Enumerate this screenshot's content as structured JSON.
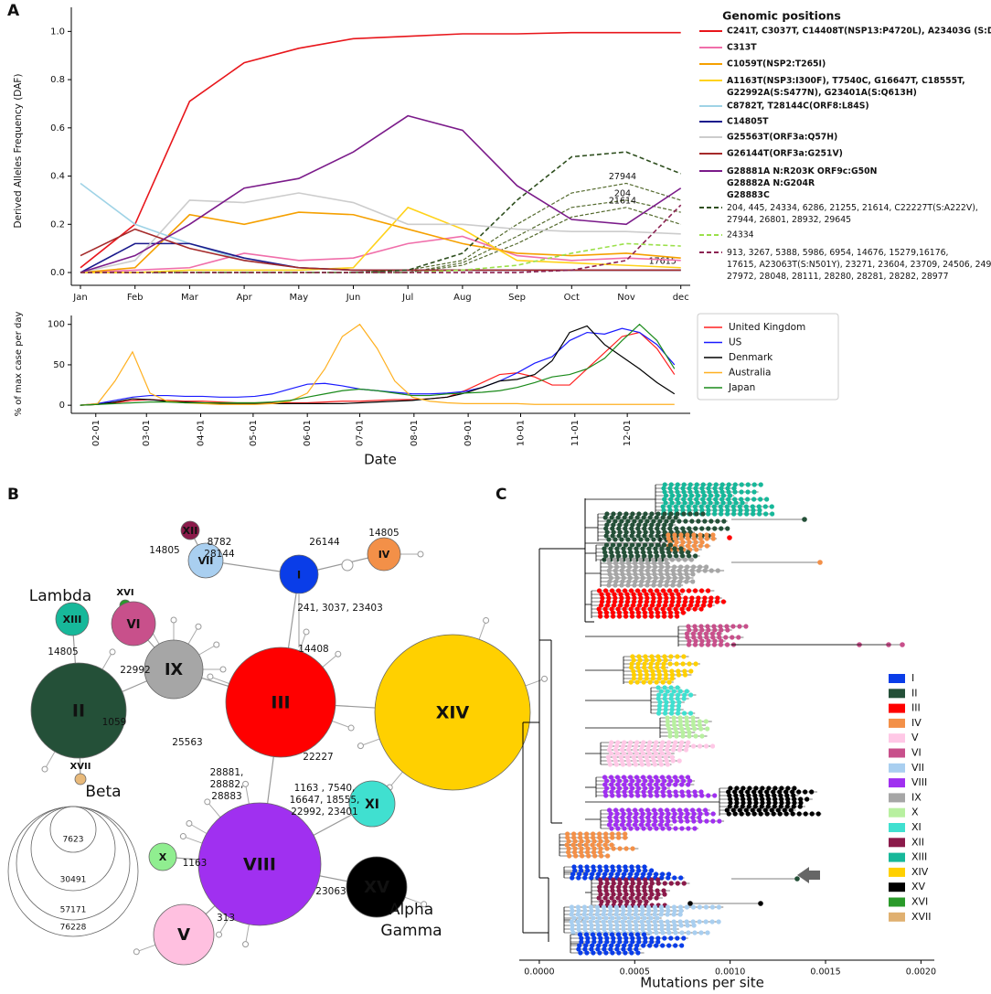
{
  "panels": [
    "A",
    "B",
    "C"
  ],
  "chart_data": [
    {
      "type": "line",
      "ylabel": "Derived Alleles Frequency (DAF)",
      "legend_title": "Genomic positions",
      "legend": "outside right",
      "categories": [
        "Jan",
        "Feb",
        "Mar",
        "Apr",
        "May",
        "Jun",
        "Jul",
        "Aug",
        "Sep",
        "Oct",
        "Nov",
        "dec"
      ],
      "ylim": [
        -0.053,
        1.1
      ],
      "yticks": [
        {
          "value": 0,
          "label": "0.0"
        },
        0.2,
        0.4,
        0.6,
        0.8,
        {
          "value": 1,
          "label": "1.0"
        }
      ],
      "series": [
        {
          "name": "C241T, C3037T, C14408T(NSP13:P4720L), A23403G (S:D614G)",
          "color": "#e8161b",
          "dashed": false,
          "values": [
            0.02,
            0.2,
            0.71,
            0.87,
            0.93,
            0.97,
            0.98,
            0.99,
            0.99,
            0.995,
            0.995,
            0.995
          ]
        },
        {
          "name": "C313T",
          "color": "#f06eaa",
          "dashed": false,
          "values": [
            0,
            0.01,
            0.02,
            0.08,
            0.05,
            0.06,
            0.12,
            0.15,
            0.07,
            0.05,
            0.06,
            0.05
          ]
        },
        {
          "name": "C1059T(NSP2:T265I)",
          "color": "#f5a000",
          "dashed": false,
          "values": [
            0,
            0.02,
            0.24,
            0.2,
            0.25,
            0.24,
            0.18,
            0.12,
            0.08,
            0.07,
            0.08,
            0.06
          ]
        },
        {
          "name": "A1163T(NSP3:I300F), T7540C, G16647T, C18555T,\nG22992A(S:S477N), G23401A(S:Q613H)",
          "color": "#ffd21a",
          "dashed": false,
          "values": [
            0,
            0,
            0.01,
            0.01,
            0.01,
            0.02,
            0.27,
            0.18,
            0.05,
            0.04,
            0.03,
            0.02
          ]
        },
        {
          "name": "C8782T, T28144C(ORF8:L84S)",
          "color": "#9fd3e6",
          "dashed": false,
          "values": [
            0.37,
            0.2,
            0.12,
            0.05,
            0.02,
            0.01,
            0.01,
            0.01,
            0.01,
            0.01,
            0.01,
            0.01
          ]
        },
        {
          "name": "C14805T",
          "color": "#1a1a8c",
          "dashed": false,
          "values": [
            0,
            0.12,
            0.12,
            0.06,
            0.02,
            0.01,
            0.01,
            0.01,
            0.01,
            0.01,
            0.01,
            0.01
          ]
        },
        {
          "name": "G25563T(ORF3a:Q57H)",
          "color": "#cccccc",
          "dashed": false,
          "values": [
            0,
            0.05,
            0.3,
            0.29,
            0.33,
            0.29,
            0.2,
            0.2,
            0.18,
            0.17,
            0.17,
            0.16
          ]
        },
        {
          "name": "G26144T(ORF3a:G251V)",
          "color": "#a52a2a",
          "dashed": false,
          "values": [
            0.07,
            0.18,
            0.1,
            0.05,
            0.02,
            0.01,
            0.01,
            0.01,
            0.01,
            0.01,
            0.01,
            0.01
          ]
        },
        {
          "name": "G28881A  N:R203K  ORF9c:G50N\nG28882A  N:G204R\nG28883C",
          "color": "#7b1b8a",
          "dashed": false,
          "values": [
            0,
            0.07,
            0.2,
            0.35,
            0.39,
            0.5,
            0.65,
            0.59,
            0.36,
            0.22,
            0.2,
            0.35
          ]
        },
        {
          "name": "204, 445, 24334, 6286, 21255, 21614, C22227T(S:A222V),\n27944, 26801, 28932, 29645",
          "color": "#2f4f1f",
          "dashed": true,
          "values": [
            0,
            0,
            0,
            0,
            0,
            0,
            0.01,
            0.08,
            0.3,
            0.48,
            0.5,
            0.41
          ]
        },
        {
          "name": "24334",
          "color": "#9be04a",
          "dashed": true,
          "values": [
            0,
            0,
            0,
            0,
            0,
            0,
            0,
            0.01,
            0.03,
            0.08,
            0.12,
            0.11
          ]
        },
        {
          "name": "913, 3267, 5388, 5986, 6954, 14676, 15279,16176,\n17615, A23063T(S:N501Y), 23271, 23604, 23709, 24506, 24914,\n27972, 28048, 28111, 28280, 28281, 28282, 28977",
          "color": "#8b2252",
          "dashed": true,
          "values": [
            0,
            0,
            0,
            0,
            0,
            0,
            0,
            0,
            0,
            0.01,
            0.05,
            0.28
          ]
        }
      ],
      "annotations": [
        {
          "text": "27944",
          "color": "#556b2f",
          "values": [
            0,
            0,
            0,
            0,
            0,
            0,
            0.01,
            0.05,
            0.2,
            0.33,
            0.37,
            0.3
          ]
        },
        {
          "text": "204",
          "color": "#556b2f",
          "values": [
            0,
            0,
            0,
            0,
            0,
            0,
            0,
            0.04,
            0.15,
            0.27,
            0.3,
            0.25
          ]
        },
        {
          "text": "21614",
          "color": "#556b2f",
          "values": [
            0,
            0,
            0,
            0,
            0,
            0,
            0,
            0.03,
            0.12,
            0.23,
            0.27,
            0.2
          ]
        },
        {
          "text": "17615",
          "color": "#8b2252",
          "x": "dec",
          "y": 0.045
        }
      ]
    },
    {
      "type": "line",
      "xlabel": "Date",
      "ylabel": "% of max case per day",
      "legend": "outside right",
      "x": [
        22,
        32,
        42,
        52,
        62,
        72,
        82,
        92,
        102,
        112,
        122,
        132,
        142,
        152,
        162,
        172,
        182,
        192,
        202,
        212,
        222,
        232,
        242,
        252,
        262,
        272,
        282,
        292,
        302,
        312,
        322,
        332,
        342,
        352,
        362
      ],
      "xlim": [
        17,
        371
      ],
      "ylim": [
        -10,
        111
      ],
      "yticks": [
        0,
        50,
        100
      ],
      "xticks": [
        {
          "value": 31,
          "label": "02-01"
        },
        {
          "value": 60,
          "label": "03-01"
        },
        {
          "value": 91,
          "label": "04-01"
        },
        {
          "value": 121,
          "label": "05-01"
        },
        {
          "value": 152,
          "label": "06-01"
        },
        {
          "value": 182,
          "label": "07-01"
        },
        {
          "value": 213,
          "label": "08-01"
        },
        {
          "value": 244,
          "label": "09-01"
        },
        {
          "value": 274,
          "label": "10-01"
        },
        {
          "value": 305,
          "label": "11-01"
        },
        {
          "value": 335,
          "label": "12-01"
        }
      ],
      "series": [
        {
          "name": "United Kingdom",
          "color": "#ff2020",
          "values": [
            0,
            1,
            3,
            6,
            7,
            6,
            5,
            5,
            4,
            3,
            3,
            3,
            3,
            3,
            4,
            5,
            5,
            6,
            7,
            7,
            8,
            10,
            18,
            28,
            38,
            40,
            35,
            25,
            25,
            45,
            65,
            85,
            90,
            70,
            38
          ]
        },
        {
          "name": "US",
          "color": "#1a1aff",
          "values": [
            0,
            2,
            6,
            10,
            12,
            12,
            11,
            11,
            10,
            10,
            11,
            14,
            20,
            26,
            27,
            24,
            20,
            18,
            16,
            14,
            14,
            15,
            17,
            22,
            30,
            40,
            52,
            60,
            80,
            90,
            88,
            95,
            90,
            75,
            50
          ]
        },
        {
          "name": "Denmark",
          "color": "#000000",
          "values": [
            0,
            1,
            4,
            8,
            7,
            5,
            4,
            3,
            2,
            2,
            2,
            2,
            2,
            2,
            2,
            2,
            3,
            4,
            5,
            6,
            8,
            10,
            15,
            22,
            30,
            32,
            38,
            55,
            90,
            98,
            75,
            60,
            45,
            28,
            14
          ]
        },
        {
          "name": "Australia",
          "color": "#ffb020",
          "values": [
            0,
            2,
            30,
            66,
            15,
            5,
            3,
            2,
            1,
            1,
            1,
            2,
            5,
            15,
            45,
            85,
            100,
            70,
            30,
            10,
            5,
            3,
            2,
            2,
            2,
            2,
            1,
            1,
            1,
            1,
            1,
            1,
            1,
            1,
            1
          ]
        },
        {
          "name": "Japan",
          "color": "#1a8a1a",
          "values": [
            0,
            1,
            2,
            3,
            4,
            4,
            3,
            3,
            3,
            3,
            3,
            4,
            6,
            10,
            14,
            18,
            20,
            18,
            15,
            12,
            12,
            14,
            15,
            16,
            18,
            22,
            28,
            35,
            38,
            45,
            58,
            80,
            100,
            80,
            45
          ]
        }
      ]
    },
    {
      "type": "tree",
      "xlabel": "Mutations per site",
      "xlim": [
        -0.000105,
        0.00207
      ],
      "xticks": [
        {
          "value": 0,
          "label": "0.0000"
        },
        {
          "value": 0.0005,
          "label": "0.0005"
        },
        {
          "value": 0.001,
          "label": "0.0010"
        },
        {
          "value": 0.0015,
          "label": "0.0015"
        },
        {
          "value": 0.002,
          "label": "0.0020"
        }
      ],
      "categories": [
        "I",
        "II",
        "III",
        "IV",
        "V",
        "VI",
        "VII",
        "VIII",
        "IX",
        "X",
        "XI",
        "XII",
        "XIII",
        "XIV",
        "XV",
        "XVI",
        "XVII"
      ],
      "colors": [
        "#0a3de8",
        "#245038",
        "#ff0000",
        "#f39048",
        "#ffc8e6",
        "#c8508b",
        "#a9cff0",
        "#a030f0",
        "#a6a6a6",
        "#b8f0a0",
        "#40e0d0",
        "#8b1a4a",
        "#17b89a",
        "#ffd000",
        "#000000",
        "#2a9a2a",
        "#e0b070"
      ]
    }
  ],
  "network": {
    "nodes": [
      {
        "label": "XII",
        "color": "#8b1a4a"
      },
      {
        "label": "VII",
        "color": "#a9cff0"
      },
      {
        "label": "I",
        "color": "#0a3de8"
      },
      {
        "label": "IV",
        "color": "#f39048"
      },
      {
        "label": "XVI",
        "color": "#2a9a2a"
      },
      {
        "label": "XIII",
        "color": "#17b89a"
      },
      {
        "label": "VI",
        "color": "#c8508b"
      },
      {
        "label": "II",
        "color": "#245038"
      },
      {
        "label": "IX",
        "color": "#a6a6a6"
      },
      {
        "label": "III",
        "color": "#ff0000"
      },
      {
        "label": "XIV",
        "color": "#ffd000"
      },
      {
        "label": "XVII",
        "color": "#e8b97a"
      },
      {
        "label": "XI",
        "color": "#40e0d0"
      },
      {
        "label": "VIII",
        "color": "#a030f0"
      },
      {
        "label": "XV",
        "color": "#000000"
      },
      {
        "label": "X",
        "color": "#90ee90"
      },
      {
        "label": "V",
        "color": "#ffc0e0"
      }
    ],
    "edge_labels": [
      "8782\n28144",
      "14805",
      "26144",
      "14805",
      "241, 3037, 23403",
      "14408",
      "14805",
      "22992",
      "1059",
      "25563",
      "28881,\n28882,\n28883",
      "22227",
      "1163 , 7540,\n16647, 18555,\n22992, 23401",
      "1163",
      "23063",
      "313"
    ],
    "variant_names": [
      "Lambda",
      "Beta",
      "Alpha",
      "Gamma"
    ],
    "size_legend": [
      "7623",
      "30491",
      "57171",
      "76228"
    ]
  }
}
